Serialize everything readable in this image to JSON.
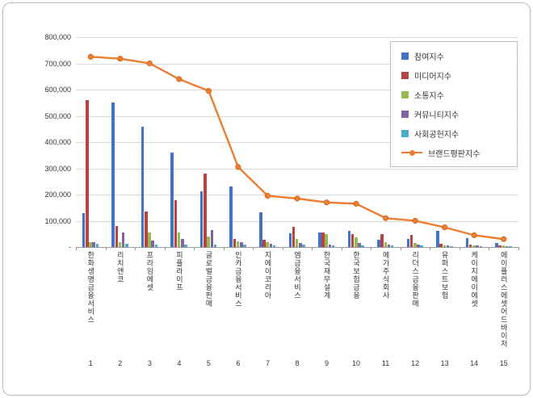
{
  "chart_data": {
    "type": "bar",
    "title": "",
    "categories": [
      "한화생명금융서비스",
      "리치앤코",
      "프라임에셋",
      "피플라이프",
      "글로벌금융판매",
      "인카금융서비스",
      "지에이코리아",
      "엠금융서비스",
      "한국재무설계",
      "한국보험금융",
      "메가주식회사",
      "리더스금융판매",
      "유퍼스트보험",
      "케이지에이에셋",
      "에이플러스에셋어드바이저"
    ],
    "category_numbers": [
      "1",
      "2",
      "3",
      "4",
      "5",
      "6",
      "7",
      "8",
      "9",
      "10",
      "11",
      "12",
      "13",
      "14",
      "15"
    ],
    "series": [
      {
        "name": "참여지수",
        "type": "bar",
        "color": "#4472C4",
        "values": [
          130000,
          550000,
          460000,
          360000,
          212000,
          230000,
          132000,
          52000,
          55000,
          62000,
          28000,
          32000,
          62000,
          35000,
          16000
        ]
      },
      {
        "name": "미디어지수",
        "type": "bar",
        "color": "#B84442",
        "values": [
          560000,
          80000,
          135000,
          180000,
          280000,
          32000,
          28000,
          78000,
          55000,
          48000,
          50000,
          45000,
          12000,
          8000,
          6000
        ]
      },
      {
        "name": "소통지수",
        "type": "bar",
        "color": "#98B954",
        "values": [
          20000,
          18000,
          55000,
          55000,
          40000,
          22000,
          20000,
          30000,
          48000,
          38000,
          18000,
          14000,
          6000,
          5000,
          5000
        ]
      },
      {
        "name": "커뮤니티지수",
        "type": "bar",
        "color": "#8064A2",
        "values": [
          20000,
          55000,
          25000,
          30000,
          65000,
          18000,
          12000,
          14000,
          10000,
          14000,
          10000,
          10000,
          6000,
          5000,
          4000
        ]
      },
      {
        "name": "사회공헌지수",
        "type": "bar",
        "color": "#4BACC6",
        "values": [
          12000,
          12000,
          8000,
          8000,
          8000,
          10000,
          6000,
          8000,
          6000,
          6000,
          6000,
          5000,
          4000,
          3000,
          3000
        ]
      },
      {
        "name": "브랜드평판지수",
        "type": "line",
        "color": "#ED7D31",
        "values": [
          725000,
          718000,
          700000,
          640000,
          595000,
          305000,
          195000,
          185000,
          170000,
          165000,
          110000,
          100000,
          75000,
          45000,
          30000
        ]
      }
    ],
    "ylim": [
      0,
      800000
    ],
    "ytick_step": 100000,
    "yticks": [
      "800,000",
      "700,000",
      "600,000",
      "500,000",
      "400,000",
      "300,000",
      "200,000",
      "100,000",
      "-"
    ],
    "grid": true,
    "legend_position": "top-right"
  }
}
